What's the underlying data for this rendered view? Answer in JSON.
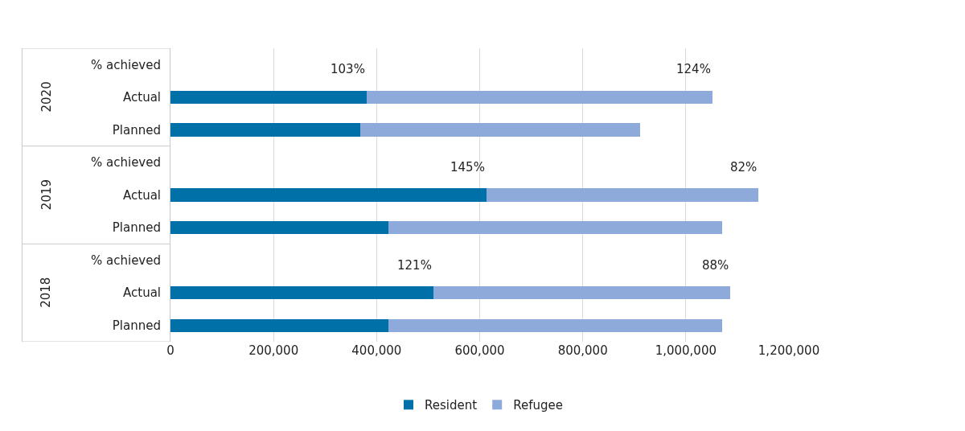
{
  "chart_data": {
    "type": "bar",
    "orientation": "horizontal",
    "stacked": true,
    "categories": [
      "% achieved",
      "Actual",
      "Planned",
      "% achieved",
      "Actual",
      "Planned",
      "% achieved",
      "Actual",
      "Planned"
    ],
    "series": [
      {
        "name": "Resident",
        "color": "#0070a8",
        "values": [
          null,
          380000,
          368000,
          null,
          613000,
          423000,
          null,
          511000,
          423000
        ]
      },
      {
        "name": "Refugee",
        "color": "#8eaadb",
        "values": [
          null,
          672000,
          544000,
          null,
          528000,
          648000,
          null,
          575000,
          648000
        ]
      }
    ],
    "annotations": [
      "2020",
      "103%",
      "124%",
      "2019",
      "145%",
      "82%",
      "2018",
      "121%",
      "88%"
    ],
    "xlim": [
      0,
      1200000
    ],
    "xticks": [
      {
        "value": 0,
        "label": "0"
      },
      {
        "value": 200000,
        "label": "200,000"
      },
      {
        "value": 400000,
        "label": "400,000"
      },
      {
        "value": 600000,
        "label": "600,000"
      },
      {
        "value": 800000,
        "label": "800,000"
      },
      {
        "value": 1000000,
        "label": "1,000,000"
      },
      {
        "value": 1200000,
        "label": "1,200,000"
      }
    ],
    "grid": "x",
    "legend": "bottom"
  }
}
